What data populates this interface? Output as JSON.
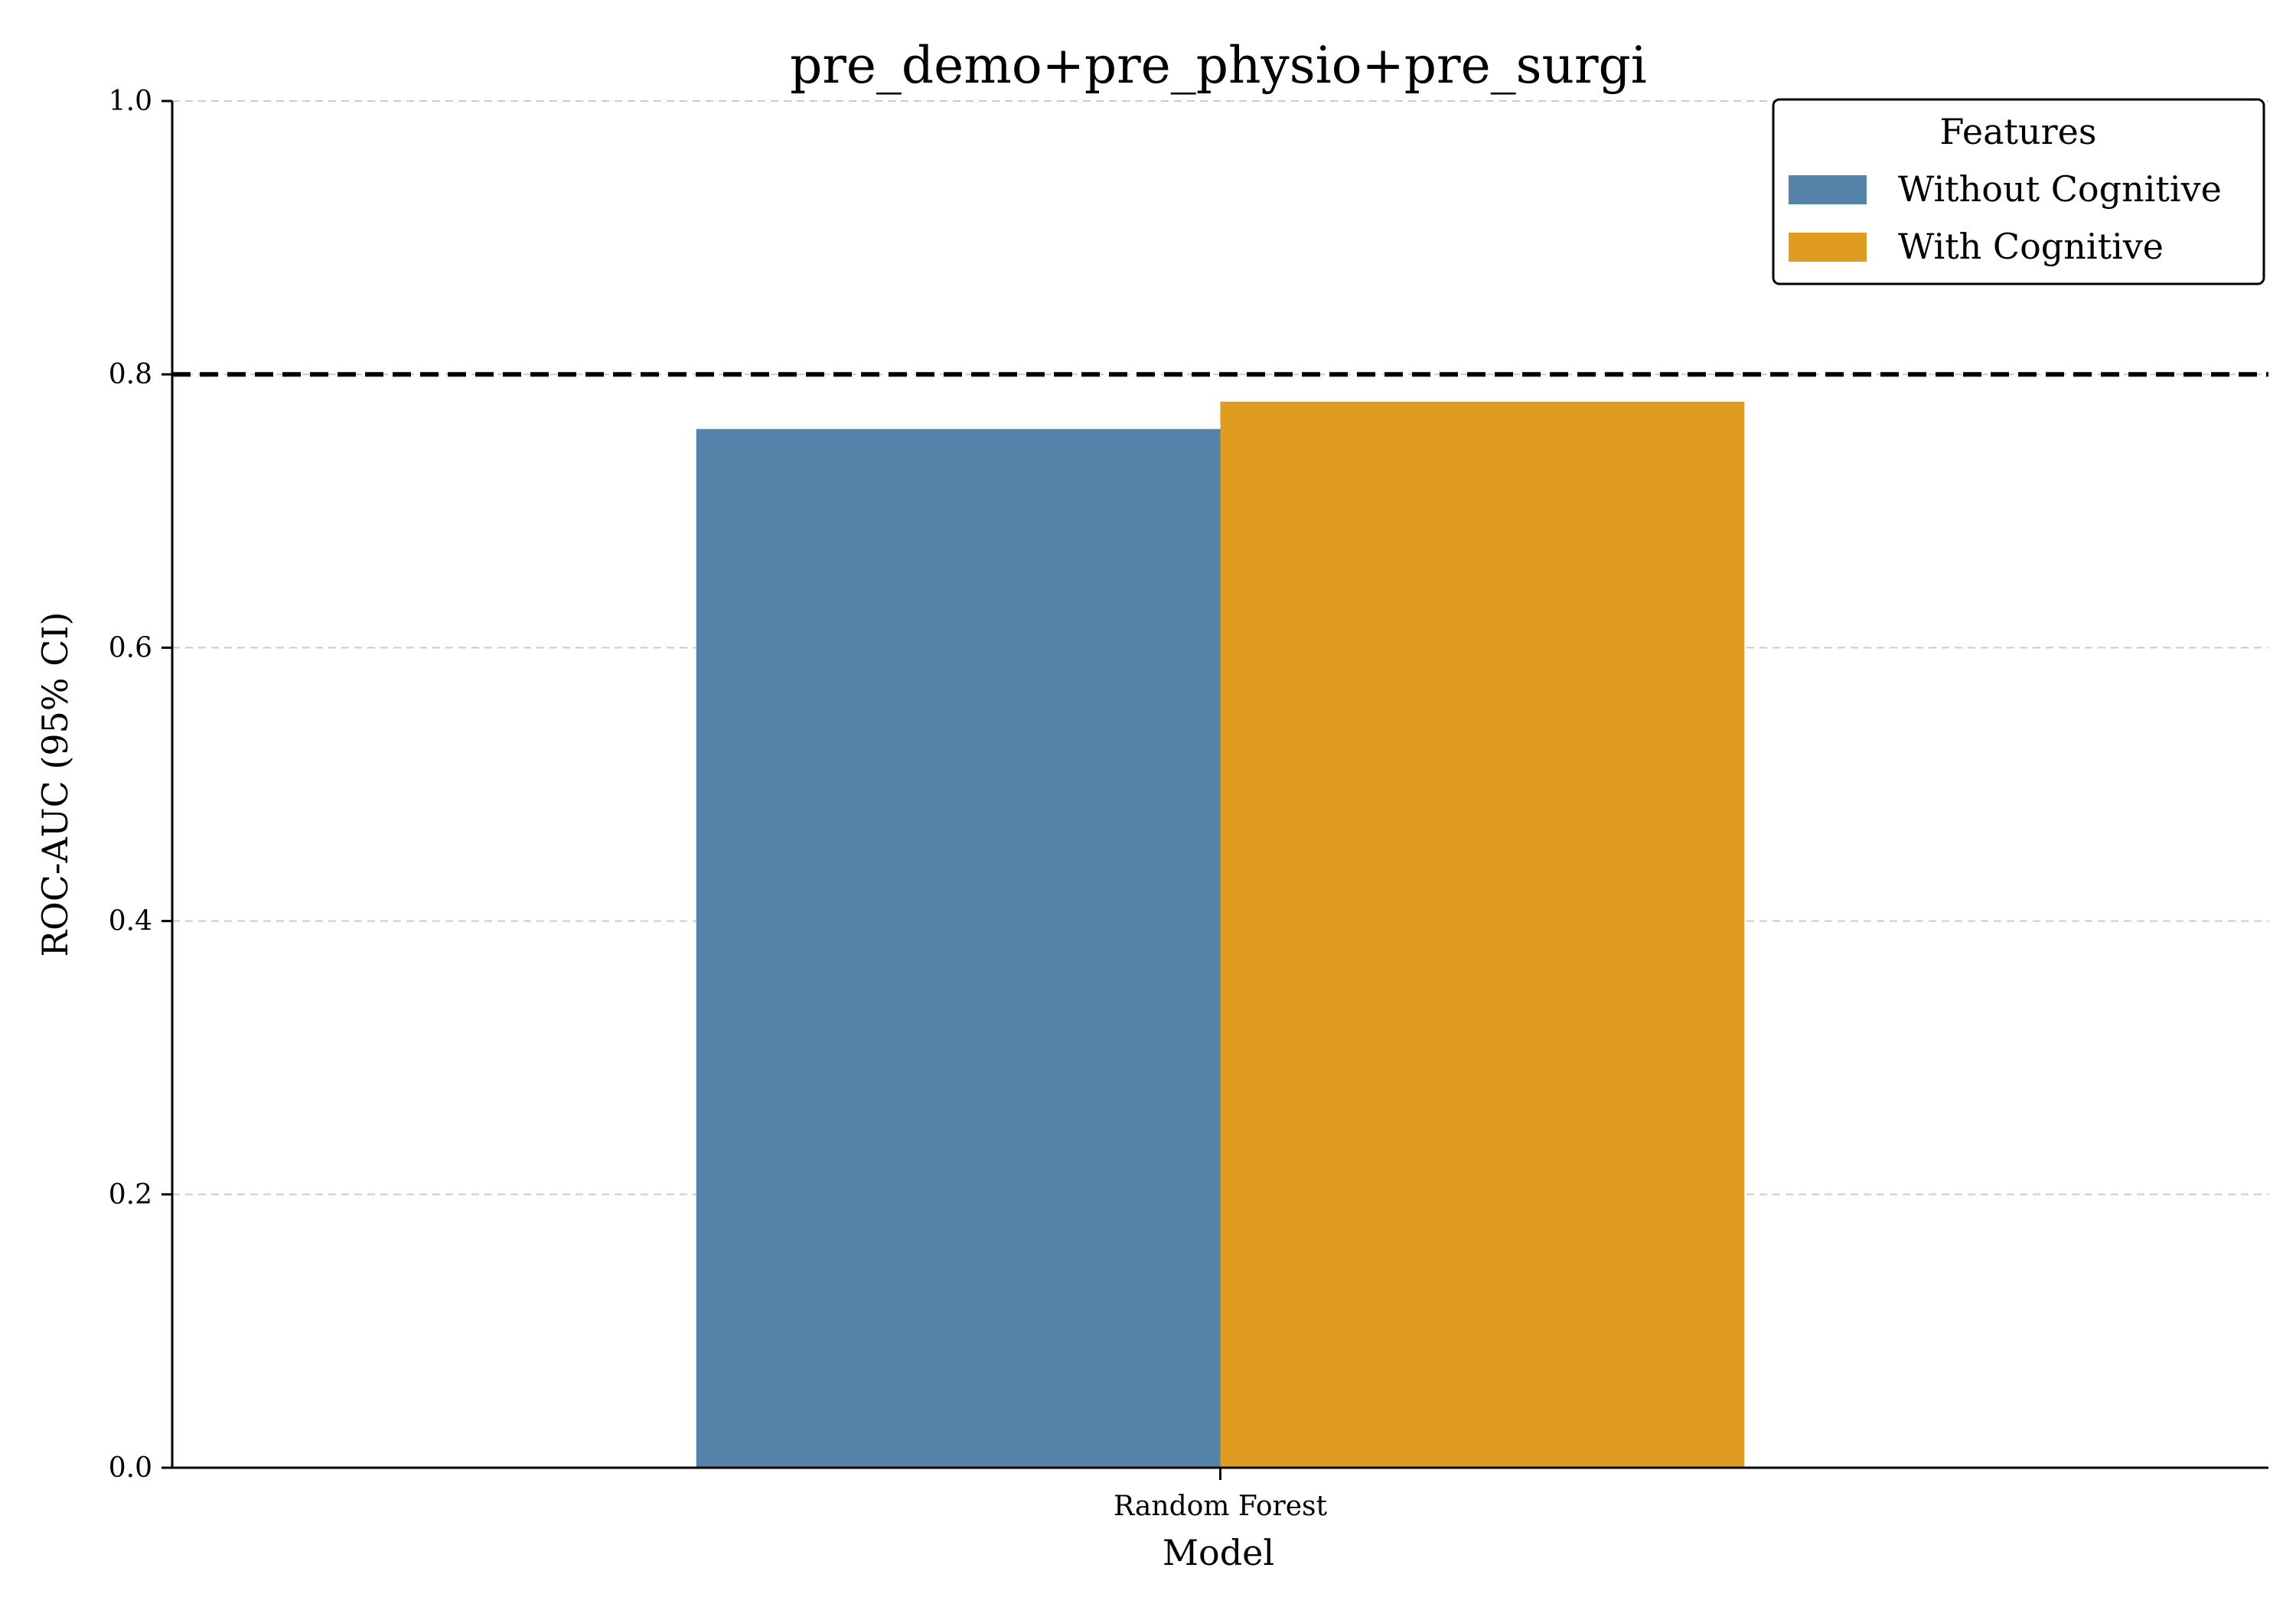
{
  "chart_data": {
    "type": "bar",
    "title": "pre_demo+pre_physio+pre_surgi",
    "xlabel": "Model",
    "ylabel": "ROC-AUC (95% CI)",
    "categories": [
      "Random Forest"
    ],
    "series": [
      {
        "name": "Without Cognitive",
        "values": [
          0.76
        ],
        "color": "#5482a8"
      },
      {
        "name": "With Cognitive",
        "values": [
          0.78
        ],
        "color": "#e09c21"
      }
    ],
    "ylim": [
      0,
      1.0
    ],
    "yticks": [
      "0.0",
      "0.2",
      "0.4",
      "0.6",
      "0.8",
      "1.0"
    ],
    "reference_line": {
      "y": 0.8,
      "style": "dashed",
      "color": "#000000"
    },
    "legend": {
      "title": "Features",
      "placement": "top-right"
    },
    "grid": {
      "y": true,
      "x": false,
      "style": "dashed",
      "color": "#cccccc"
    }
  }
}
